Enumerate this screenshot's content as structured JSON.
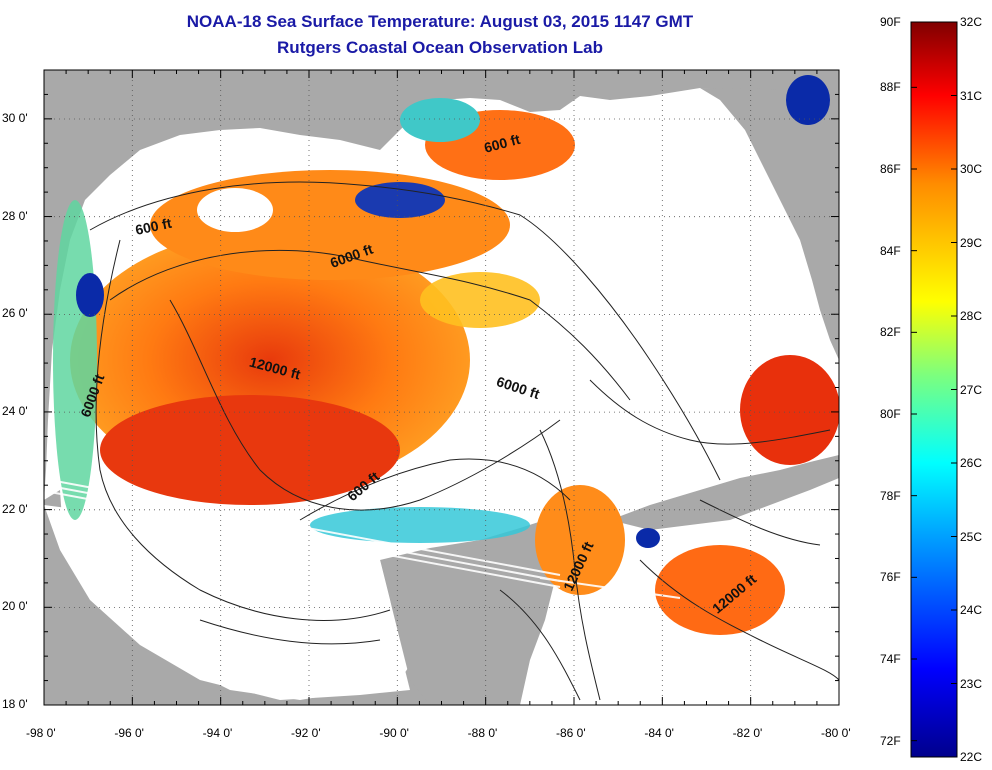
{
  "title": "NOAA-18 Sea Surface Temperature:  August 03, 2015 1147 GMT",
  "subtitle": "Rutgers Coastal Ocean Observation Lab",
  "map": {
    "lon_range": [
      -98,
      -80
    ],
    "lat_range": [
      18,
      31
    ],
    "x_ticks": [
      "-98 0'",
      "-96 0'",
      "-94 0'",
      "-92 0'",
      "-90 0'",
      "-88 0'",
      "-86 0'",
      "-84 0'",
      "-82 0'",
      "-80 0'"
    ],
    "y_ticks": [
      "18 0'",
      "20 0'",
      "22 0'",
      "24 0'",
      "26 0'",
      "28 0'",
      "30 0'"
    ],
    "depth_labels": [
      {
        "text": "600 ft",
        "lon": -95.5,
        "lat": 27.7,
        "rot": -12
      },
      {
        "text": "6000 ft",
        "lon": -91.0,
        "lat": 27.1,
        "rot": -20
      },
      {
        "text": "600 ft",
        "lon": -87.6,
        "lat": 29.4,
        "rot": -15
      },
      {
        "text": "12000 ft",
        "lon": -92.8,
        "lat": 24.8,
        "rot": 15
      },
      {
        "text": "6000 ft",
        "lon": -96.8,
        "lat": 24.3,
        "rot": -70
      },
      {
        "text": "6000 ft",
        "lon": -87.3,
        "lat": 24.4,
        "rot": 18
      },
      {
        "text": "600 ft",
        "lon": -90.7,
        "lat": 22.4,
        "rot": -40
      },
      {
        "text": "12000 ft",
        "lon": -85.8,
        "lat": 20.8,
        "rot": -65
      },
      {
        "text": "12000 ft",
        "lon": -82.3,
        "lat": 20.2,
        "rot": -40
      }
    ],
    "colors": {
      "land": "#a9a9a9",
      "nodata": "#ffffff",
      "warm": "#ff7a10",
      "hot": "#e02a0a",
      "mid": "#ffd21a",
      "cool": "#19c9d8",
      "cold": "#0a2aa8"
    }
  },
  "colorbar": {
    "f_labels": [
      "90F",
      "88F",
      "86F",
      "84F",
      "82F",
      "80F",
      "78F",
      "76F",
      "74F",
      "72F"
    ],
    "c_labels": [
      "32C",
      "31C",
      "30C",
      "29C",
      "28C",
      "27C",
      "26C",
      "25C",
      "24C",
      "23C",
      "22C"
    ]
  }
}
